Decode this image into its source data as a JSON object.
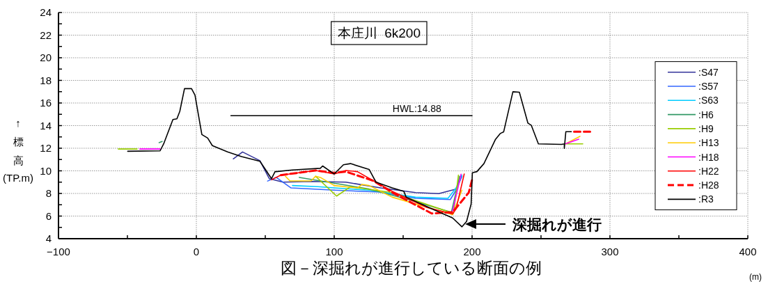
{
  "chart_data": {
    "type": "line",
    "title": "本庄川  6k200",
    "ylabel": "↑標高(TP.m)",
    "xlabel": "(m)",
    "xlim": [
      -100,
      400
    ],
    "ylim": [
      4,
      24
    ],
    "xticks": [
      {
        "value": -100,
        "label": "−100"
      },
      {
        "value": -50,
        "label": null
      },
      0,
      {
        "value": 50,
        "label": null
      },
      100,
      {
        "value": 150,
        "label": null
      },
      200,
      {
        "value": 250,
        "label": null
      },
      300,
      {
        "value": 350,
        "label": null
      },
      400
    ],
    "yticks": [
      4,
      {
        "value": 5,
        "label": null
      },
      6,
      {
        "value": 7,
        "label": null
      },
      8,
      {
        "value": 9,
        "label": null
      },
      10,
      {
        "value": 11,
        "label": null
      },
      12,
      {
        "value": 13,
        "label": null
      },
      14,
      {
        "value": 15,
        "label": null
      },
      16,
      {
        "value": 17,
        "label": null
      },
      18,
      {
        "value": 19,
        "label": null
      },
      20,
      {
        "value": 21,
        "label": null
      },
      22,
      {
        "value": 23,
        "label": null
      },
      24
    ],
    "grid": true,
    "legend": "right",
    "annotations": [
      {
        "text": "HWL:14.88",
        "x": 160,
        "y": 14.88
      },
      "深掘れが進行",
      "図－深掘れが進行している断面の例"
    ],
    "series": [
      {
        "color": "#000000",
        "x": [
          25,
          200
        ],
        "values": [
          14.88,
          14.88
        ]
      },
      {
        "name": ":S47",
        "color": "#333399",
        "x": [
          26.8,
          33.5,
          46.1,
          52.9,
          62.9,
          83.2,
          108.4,
          133.7,
          159,
          175.8,
          188.4,
          192.6
        ],
        "values": [
          11.06,
          11.67,
          10.9,
          9.31,
          9,
          9.06,
          9,
          8.49,
          8.08,
          7.98,
          8.39,
          9.52
        ]
      },
      {
        "name": ":S57",
        "color": "#3366ff",
        "x": [
          51.7,
          57.9,
          68.7,
          100,
          133.7,
          159,
          184.2,
          188.4,
          192.6
        ],
        "values": [
          9.1,
          9.42,
          8.49,
          8.29,
          8.12,
          7.57,
          7.46,
          8.29,
          9.52
        ]
      },
      {
        "name": ":S63",
        "color": "#00ccff",
        "x": [
          69.7,
          88.2,
          100,
          125.3,
          142.1,
          159,
          182.5,
          188.4,
          192.6
        ],
        "values": [
          8.7,
          8.6,
          8.49,
          8.29,
          7.98,
          7.67,
          7.57,
          8.49,
          9.62
        ]
      },
      {
        "name": ":H6",
        "color": "#339966",
        "x": [
          -27,
          -24.8,
          null,
          74.7,
          125.3,
          150.5,
          185,
          191
        ],
        "values": [
          12.5,
          12.6,
          null,
          9.42,
          8.39,
          7.57,
          6.34,
          9.52
        ]
      },
      {
        "name": ":H9",
        "color": "#99cc00",
        "x": [
          -56.6,
          -43,
          null,
          86.5,
          101.7,
          111.8,
          142.1,
          186.5,
          190.1,
          null,
          268,
          280.3
        ],
        "values": [
          11.93,
          11.93,
          null,
          9.52,
          7.77,
          8.59,
          8.08,
          6.23,
          9.62,
          null,
          12.38,
          12.38
        ]
      },
      {
        "name": ":H13",
        "color": "#ffcc00",
        "x": [
          64.6,
          67.9,
          83.2,
          86.5,
          89.9,
          100,
          116.8,
          120.2,
          125.3,
          142.1,
          185.9,
          192.6,
          null,
          268,
          278.2
        ],
        "values": [
          9.52,
          9.11,
          9.11,
          9.52,
          9.42,
          8.7,
          8.49,
          8.8,
          8.7,
          7.67,
          6.13,
          8.29,
          null,
          12.4,
          13.05
        ]
      },
      {
        "name": ":H18",
        "color": "#ff00ff",
        "x": [
          -41,
          -26.3,
          null,
          185.9,
          192,
          null,
          268,
          277.4
        ],
        "values": [
          11.93,
          11.93,
          null,
          6.44,
          9.7,
          null,
          12.4,
          12.8
        ]
      },
      {
        "name": ":H22",
        "color": "#ff0000",
        "x": [
          54.5,
          61.2,
          86.5,
          100,
          108.4,
          116.8,
          128.6,
          142.1,
          167.4,
          185.9,
          188.4,
          194.3
        ],
        "values": [
          9.21,
          9.62,
          10.03,
          9.72,
          10.03,
          9.93,
          9.11,
          8.18,
          6.75,
          6.19,
          6.64,
          9.72
        ]
      },
      {
        "name": ":H28",
        "color": "#ff0000",
        "line_style": "dashed",
        "x": [
          61.2,
          86.5,
          100,
          108.4,
          128.6,
          142.1,
          170.7,
          185.9,
          197.6,
          200.2,
          null,
          274,
          287.7
        ],
        "values": [
          9.62,
          10.03,
          9.82,
          9.93,
          9.11,
          8.08,
          6.23,
          6.34,
          8.08,
          9.31,
          null,
          13.46,
          13.46
        ]
      },
      {
        "name": ":R3",
        "color": "#000000",
        "x": [
          -49.8,
          -26.3,
          -23.7,
          -17,
          -14.1,
          -12,
          -8.6,
          -3.5,
          -1,
          4,
          8.2,
          11.6,
          22.6,
          32.7,
          46.1,
          49.5,
          54.5,
          57.1,
          57.9,
          69.7,
          89.9,
          91.6,
          100,
          106.7,
          111.8,
          125.3,
          130.3,
          142.1,
          150.5,
          152.2,
          170.7,
          185.9,
          192.6,
          196,
          199.3,
          200.2,
          203.5,
          208.6,
          217,
          220.4,
          222.9,
          229.6,
          234.3,
          240.5,
          243,
          248.1,
          264.9,
          266.9,
          266.9,
          268,
          272
        ],
        "values": [
          11.73,
          11.77,
          12.39,
          14.54,
          14.6,
          15.26,
          17.27,
          17.27,
          16.7,
          13.21,
          12.9,
          12.23,
          11.67,
          11.26,
          10.85,
          10.23,
          9.31,
          9.93,
          9.93,
          10.08,
          10.22,
          10.43,
          9.72,
          10.54,
          10.64,
          10.13,
          9.0,
          8.49,
          8.18,
          7.67,
          6.64,
          5.83,
          5.05,
          5.52,
          7.06,
          9.83,
          9.93,
          10.64,
          12.79,
          13.3,
          13.44,
          16.99,
          16.95,
          14.22,
          14.02,
          12.38,
          12.34,
          12.38,
          11.98,
          13.46,
          13.46
        ]
      }
    ]
  }
}
